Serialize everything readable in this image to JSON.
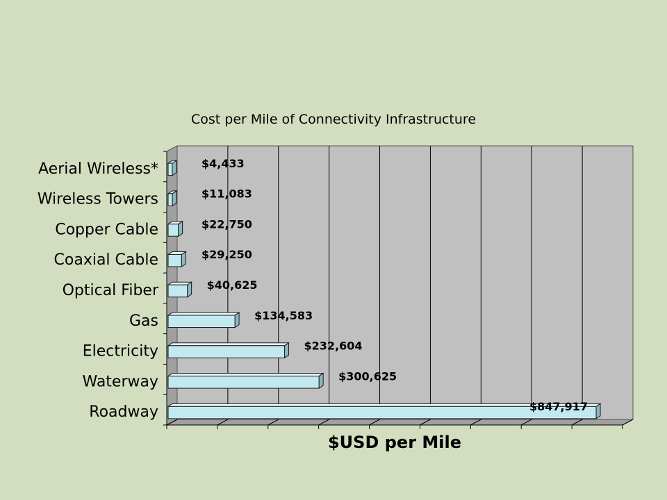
{
  "slide": {
    "background": "#d3dec0"
  },
  "chart_data": {
    "type": "bar",
    "orientation": "horizontal",
    "style": "3d",
    "title": "Cost per Mile of Connectivity Infrastructure",
    "xlabel": "$USD per Mile",
    "ylabel": "",
    "categories": [
      "Aerial Wireless*",
      "Wireless Towers",
      "Copper Cable",
      "Coaxial Cable",
      "Optical Fiber",
      "Gas",
      "Electricity",
      "Waterway",
      "Roadway"
    ],
    "values": [
      4433,
      11083,
      22750,
      29250,
      40625,
      134583,
      232604,
      300625,
      847917
    ],
    "data_labels": [
      "$4,433",
      "$11,083",
      "$22,750",
      "$29,250",
      "$40,625",
      "$134,583",
      "$232,604",
      "$300,625",
      "$847,917"
    ],
    "xlim": [
      0,
      900000
    ],
    "x_tick_step": 100000,
    "x_tick_labels_shown": false,
    "grid": true,
    "legend": "none",
    "colors": {
      "bar_front": "#c3e9f0",
      "bar_top": "#e8f7fa",
      "bar_side": "#8cb8c0",
      "bar_edge": "#1a1a1a",
      "plot_wall": "#c0c0c0",
      "plot_floor": "#a0a0a0",
      "gridline": "#000000",
      "text": "#000000"
    }
  }
}
